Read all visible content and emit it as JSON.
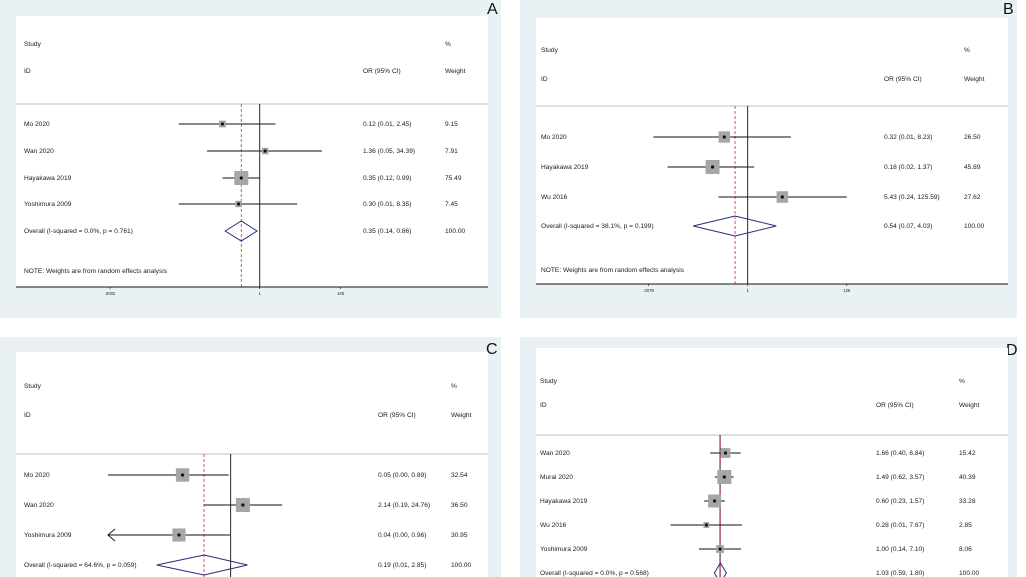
{
  "chart_data": [
    {
      "type": "forest",
      "panel_label": "A",
      "header": {
        "study": "Study",
        "id": "ID",
        "pct": "%",
        "or_ci": "OR (95% CI)",
        "weight": "Weight"
      },
      "scale": "log",
      "axis_ticks": [
        {
          "value": 0.0002,
          "label": ".0002"
        },
        {
          "value": 1,
          "label": "1"
        },
        {
          "value": 100,
          "label": "100"
        }
      ],
      "xlim": [
        0.0002,
        300
      ],
      "pooled_or": 0.35,
      "studies": [
        {
          "name": "Mo 2020",
          "or": 0.12,
          "lo": 0.01,
          "hi": 2.45,
          "ci_text": "0.12 (0.01, 2.45)",
          "weight": "9.15"
        },
        {
          "name": "Wan 2020",
          "or": 1.36,
          "lo": 0.05,
          "hi": 34.39,
          "ci_text": "1.36 (0.05, 34.39)",
          "weight": "7.91"
        },
        {
          "name": "Hayakawa 2019",
          "or": 0.35,
          "lo": 0.12,
          "hi": 0.99,
          "ci_text": "0.35 (0.12, 0.99)",
          "weight": "75.49"
        },
        {
          "name": "Yoshimura 2009",
          "or": 0.3,
          "lo": 0.01,
          "hi": 8.35,
          "ci_text": "0.30 (0.01, 8.35)",
          "weight": "7.45"
        }
      ],
      "overall": {
        "label": "Overall  (I-squared = 0.0%, p = 0.761)",
        "or": 0.35,
        "lo": 0.14,
        "hi": 0.86,
        "ci_text": "0.35 (0.14, 0.86)",
        "weight": "100.00"
      },
      "note": "NOTE: Weights are from random effects analysis"
    },
    {
      "type": "forest",
      "panel_label": "B",
      "header": {
        "study": "Study",
        "id": "ID",
        "pct": "%",
        "or_ci": "OR (95% CI)",
        "weight": "Weight"
      },
      "scale": "log",
      "axis_ticks": [
        {
          "value": 0.0079,
          "label": ".0079"
        },
        {
          "value": 1,
          "label": "1"
        },
        {
          "value": 126,
          "label": "126"
        }
      ],
      "xlim": [
        0.0032,
        500
      ],
      "pooled_or": 0.54,
      "studies": [
        {
          "name": "Mo 2020",
          "or": 0.32,
          "lo": 0.01,
          "hi": 8.23,
          "ci_text": "0.32 (0.01, 8.23)",
          "weight": "26.50"
        },
        {
          "name": "Hayakawa 2019",
          "or": 0.18,
          "lo": 0.02,
          "hi": 1.37,
          "ci_text": "0.18 (0.02, 1.37)",
          "weight": "45.89"
        },
        {
          "name": "Wu 2016",
          "or": 5.43,
          "lo": 0.24,
          "hi": 125.59,
          "ci_text": "5.43 (0.24, 125.59)",
          "weight": "27.62"
        }
      ],
      "overall": {
        "label": "Overall  (I-squared = 38.1%, p = 0.199)",
        "or": 0.54,
        "lo": 0.07,
        "hi": 4.03,
        "ci_text": "0.54 (0.07, 4.03)",
        "weight": "100.00"
      },
      "note": "NOTE: Weights are from random effects analysis"
    },
    {
      "type": "forest",
      "panel_label": "C",
      "header": {
        "study": "Study",
        "id": "ID",
        "pct": "%",
        "or_ci": "OR (95% CI)",
        "weight": "Weight"
      },
      "scale": "log",
      "xlim": [
        0.0004,
        8000
      ],
      "pooled_or": 0.19,
      "studies": [
        {
          "name": "Mo 2020",
          "or": 0.05,
          "lo": 0.0,
          "hi": 0.89,
          "ci_text": "0.05 (0.00, 0.89)",
          "weight": "32.54"
        },
        {
          "name": "Wan 2020",
          "or": 2.14,
          "lo": 0.19,
          "hi": 24.76,
          "ci_text": "2.14 (0.19, 24.76)",
          "weight": "36.50"
        },
        {
          "name": "Yoshimura 2009",
          "or": 0.04,
          "lo": 0.0,
          "hi": 0.96,
          "ci_text": "0.04 (0.00, 0.96)",
          "weight": "30.95",
          "lo_arrow": true
        }
      ],
      "overall": {
        "label": "Overall  (I-squared = 64.6%, p = 0.059)",
        "or": 0.19,
        "lo": 0.01,
        "hi": 2.85,
        "ci_text": "0.19 (0.01, 2.85)",
        "weight": "100.00"
      },
      "note": ""
    },
    {
      "type": "forest",
      "panel_label": "D",
      "header": {
        "study": "Study",
        "id": "ID",
        "pct": "%",
        "or_ci": "OR (95% CI)",
        "weight": "Weight"
      },
      "scale": "log",
      "xlim": [
        2.2e-06,
        450000
      ],
      "pooled_or": 1.03,
      "studies": [
        {
          "name": "Wan 2020",
          "or": 1.66,
          "lo": 0.4,
          "hi": 6.84,
          "ci_text": "1.66 (0.40, 6.84)",
          "weight": "15.42"
        },
        {
          "name": "Murai 2020",
          "or": 1.49,
          "lo": 0.62,
          "hi": 3.57,
          "ci_text": "1.49 (0.62, 3.57)",
          "weight": "40.39"
        },
        {
          "name": "Hayakawa 2019",
          "or": 0.6,
          "lo": 0.23,
          "hi": 1.57,
          "ci_text": "0.60 (0.23, 1.57)",
          "weight": "33.28"
        },
        {
          "name": "Wu 2016",
          "or": 0.28,
          "lo": 0.01,
          "hi": 7.67,
          "ci_text": "0.28 (0.01, 7.67)",
          "weight": "2.85"
        },
        {
          "name": "Yoshimura 2009",
          "or": 1.0,
          "lo": 0.14,
          "hi": 7.1,
          "ci_text": "1.00 (0.14, 7.10)",
          "weight": "8.06"
        }
      ],
      "overall": {
        "label": "Overall  (I-squared = 0.0%, p = 0.568)",
        "or": 1.03,
        "lo": 0.59,
        "hi": 1.8,
        "ci_text": "1.03 (0.59, 1.80)",
        "weight": "100.00"
      },
      "note": ""
    }
  ]
}
